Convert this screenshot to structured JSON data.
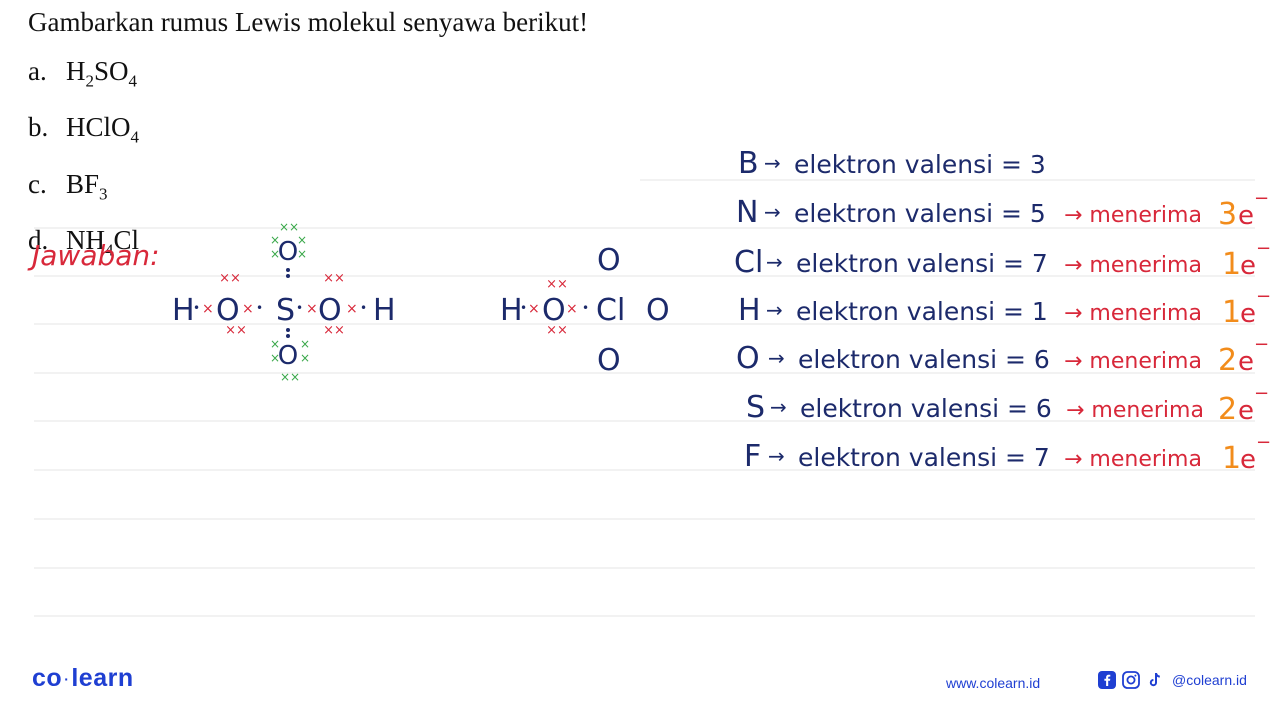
{
  "question": {
    "title": "Gambarkan rumus Lewis molekul senyawa berikut!",
    "items": [
      {
        "letter": "a.",
        "parts": [
          "H",
          "2",
          "SO",
          "4"
        ]
      },
      {
        "letter": "b.",
        "parts": [
          "HClO",
          "4"
        ]
      },
      {
        "letter": "c.",
        "parts": [
          "BF",
          "3"
        ]
      },
      {
        "letter": "d.",
        "parts": [
          "NH",
          "4",
          "Cl"
        ]
      }
    ]
  },
  "handwriting": {
    "answer_label": "Jawaban:",
    "lewis_h2so4": {
      "atoms": [
        "H",
        "O",
        "S",
        "O",
        "H",
        "O",
        "O"
      ],
      "bond_dot": "•",
      "bond_cross": "×",
      "lone_pair_cross": "××"
    },
    "lewis_hclo4": {
      "atoms": [
        "H",
        "O",
        "Cl",
        "O",
        "O",
        "O"
      ],
      "bond_dot": "•",
      "bond_cross": "×",
      "lone_pair_cross": "××"
    },
    "valence_rows": [
      {
        "element": "B",
        "arrow": "→",
        "text": "elektron valensi = 3",
        "action": "",
        "count": ""
      },
      {
        "element": "N",
        "arrow": "→",
        "text": "elektron valensi = 5",
        "action": "→ menerima",
        "count": "3",
        "unit": "e",
        "sup": "−"
      },
      {
        "element": "Cl",
        "arrow": "→",
        "text": "elektron valensi = 7",
        "action": "→ menerima",
        "count": "1",
        "unit": "e",
        "sup": "−"
      },
      {
        "element": "H",
        "arrow": "→",
        "text": "elektron valensi = 1",
        "action": "→ menerima",
        "count": "1",
        "unit": "e",
        "sup": "−"
      },
      {
        "element": "O",
        "arrow": "→",
        "text": "elektron valensi = 6",
        "action": "→ menerima",
        "count": "2",
        "unit": "e",
        "sup": "−"
      },
      {
        "element": "S",
        "arrow": "→",
        "text": "elektron valensi = 6",
        "action": "→ menerima",
        "count": "2",
        "unit": "e",
        "sup": "−"
      },
      {
        "element": "F",
        "arrow": "→",
        "text": "elektron valensi = 7",
        "action": "→ menerima",
        "count": "1",
        "unit": "e",
        "sup": "−"
      }
    ],
    "colors": {
      "ink": "#1c2a6b",
      "red": "#d8283a",
      "green": "#3aa84a",
      "orange": "#f28c1b"
    }
  },
  "footer": {
    "logo_left": "co",
    "logo_dot": "·",
    "logo_right": "learn",
    "url": "www.colearn.id",
    "handle": "@colearn.id",
    "icons": [
      "facebook-icon",
      "instagram-icon",
      "tiktok-icon"
    ]
  }
}
